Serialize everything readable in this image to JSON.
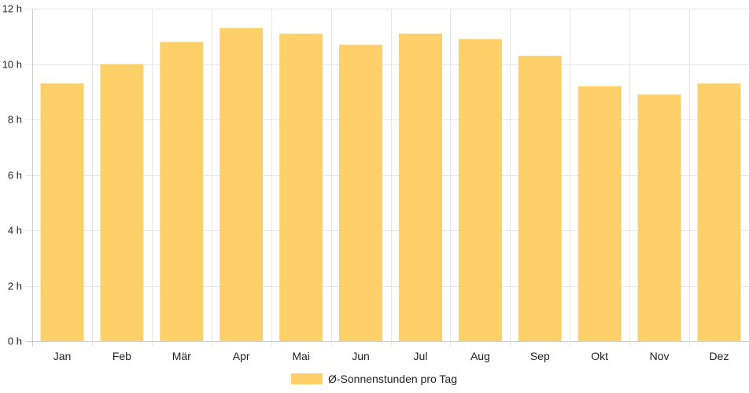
{
  "chart_data": {
    "type": "bar",
    "categories": [
      "Jan",
      "Feb",
      "Mär",
      "Apr",
      "Mai",
      "Jun",
      "Jul",
      "Aug",
      "Sep",
      "Okt",
      "Nov",
      "Dez"
    ],
    "series": [
      {
        "name": "Ø-Sonnenstunden pro Tag",
        "values": [
          9.3,
          10.0,
          10.8,
          11.3,
          11.1,
          10.7,
          11.1,
          10.9,
          10.3,
          9.2,
          8.9,
          9.3
        ],
        "color": "#FDD06A"
      }
    ],
    "ylim": [
      0,
      12
    ],
    "y_ticks": [
      0,
      2,
      4,
      6,
      8,
      10,
      12
    ],
    "y_tick_labels": [
      "0 h",
      "2 h",
      "4 h",
      "6 h",
      "8 h",
      "10 h",
      "12 h"
    ],
    "grid": true,
    "legend_position": "bottom-center",
    "colors": {
      "grid": "#E6E6E6",
      "axis": "#CCCCCC",
      "text": "#222222"
    }
  }
}
